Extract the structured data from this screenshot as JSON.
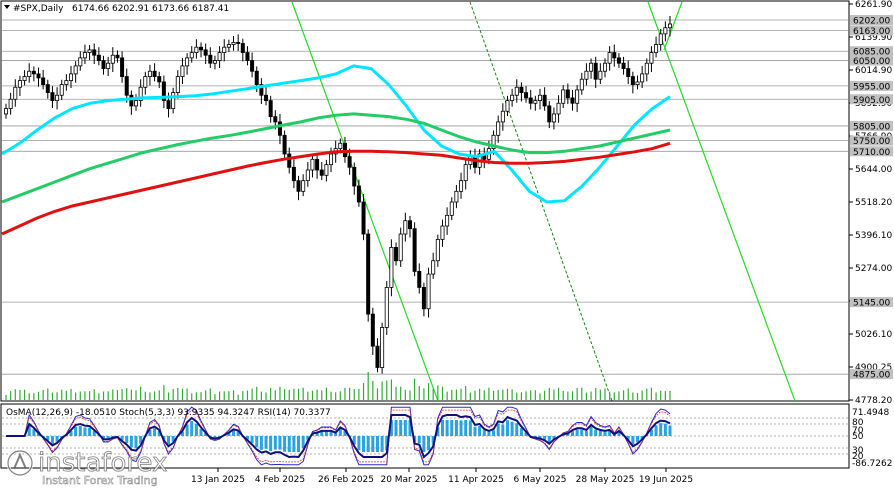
{
  "chart_data": {
    "type": "candlestick",
    "symbol_line": {
      "symbol": "#SPX,Daily",
      "open": "6174.66",
      "high": "6202.91",
      "low": "6173.66",
      "close": "6187.41"
    },
    "ylim": [
      4778.2,
      6261.9
    ],
    "price_ticks": [
      "6261.90",
      "6139.90",
      "6014.90",
      "5892.90",
      "5766.90",
      "5644.00",
      "5518.20",
      "5396.10",
      "5274.00",
      "5148.00",
      "5026.10",
      "4900.25",
      "4778.20"
    ],
    "level_tags": [
      {
        "label": "6202.00",
        "value": 6202.0,
        "color": "#c0c0c0"
      },
      {
        "label": "6163.00",
        "value": 6163.0,
        "color": "#c0c0c0"
      },
      {
        "label": "6085.00",
        "value": 6085.0,
        "color": "#c0c0c0"
      },
      {
        "label": "6050.00",
        "value": 6050.0,
        "color": "#c0c0c0"
      },
      {
        "label": "5955.00",
        "value": 5955.0,
        "color": "#c0c0c0"
      },
      {
        "label": "5905.00",
        "value": 5905.0,
        "color": "#c0c0c0"
      },
      {
        "label": "5805.00",
        "value": 5805.0,
        "color": "#c0c0c0"
      },
      {
        "label": "5750.00",
        "value": 5750.0,
        "color": "#c0c0c0"
      },
      {
        "label": "5710.00",
        "value": 5710.0,
        "color": "#c0c0c0"
      },
      {
        "label": "5145.00",
        "value": 5145.0,
        "color": "#c0c0c0"
      },
      {
        "label": "4875.00",
        "value": 4875.0,
        "color": "#c0c0c0"
      }
    ],
    "date_ticks": [
      "13 Jan 2025",
      "4 Feb 2025",
      "26 Feb 2025",
      "20 Mar 2025",
      "11 Apr 2025",
      "6 May 2025",
      "28 May 2025",
      "19 Jun 2025"
    ],
    "close_series": [
      5870,
      5905,
      5950,
      5975,
      5990,
      6010,
      6000,
      5985,
      5960,
      5930,
      5900,
      5920,
      5960,
      5975,
      6000,
      6030,
      6060,
      6080,
      6090,
      6070,
      6050,
      6020,
      6040,
      6070,
      6060,
      5990,
      5920,
      5880,
      5900,
      5950,
      5990,
      6010,
      5990,
      5970,
      5900,
      5870,
      5930,
      5990,
      6030,
      6060,
      6080,
      6100,
      6090,
      6070,
      6040,
      6050,
      6080,
      6100,
      6110,
      6118,
      6114,
      6080,
      6050,
      6010,
      5960,
      5920,
      5900,
      5840,
      5820,
      5770,
      5700,
      5650,
      5600,
      5560,
      5600,
      5640,
      5680,
      5640,
      5620,
      5660,
      5700,
      5720,
      5740,
      5690,
      5650,
      5580,
      5520,
      5400,
      5100,
      4980,
      4900,
      5050,
      5200,
      5350,
      5300,
      5400,
      5450,
      5420,
      5260,
      5200,
      5120,
      5250,
      5300,
      5380,
      5430,
      5470,
      5520,
      5560,
      5600,
      5660,
      5690,
      5650,
      5700,
      5680,
      5720,
      5770,
      5820,
      5860,
      5900,
      5920,
      5950,
      5930,
      5910,
      5890,
      5900,
      5920,
      5880,
      5820,
      5850,
      5890,
      5940,
      5910,
      5890,
      5940,
      5980,
      6010,
      6040,
      5980,
      6010,
      6040,
      6080,
      6060,
      6040,
      6020,
      5990,
      5960,
      5970,
      6000,
      6040,
      6080,
      6110,
      6150,
      6173,
      6187
    ],
    "moving_averages": [
      {
        "color": "#00e5ff",
        "values": [
          5700,
          5740,
          5790,
          5835,
          5870,
          5890,
          5900,
          5905,
          5910,
          5912,
          5915,
          5918,
          5925,
          5935,
          5945,
          5955,
          5965,
          5975,
          5985,
          6000,
          6030,
          6020,
          5960,
          5880,
          5790,
          5730,
          5700,
          5690,
          5710,
          5640,
          5560,
          5520,
          5525,
          5580,
          5650,
          5730,
          5810,
          5870,
          5915
        ]
      },
      {
        "color": "#22cc66",
        "values": [
          5520,
          5545,
          5570,
          5595,
          5620,
          5645,
          5665,
          5685,
          5705,
          5720,
          5735,
          5748,
          5760,
          5770,
          5782,
          5795,
          5808,
          5820,
          5835,
          5845,
          5850,
          5845,
          5840,
          5830,
          5815,
          5790,
          5765,
          5745,
          5730,
          5715,
          5705,
          5705,
          5710,
          5720,
          5730,
          5745,
          5760,
          5775,
          5790
        ]
      },
      {
        "color": "#e01010",
        "values": [
          5400,
          5430,
          5460,
          5485,
          5505,
          5520,
          5535,
          5550,
          5565,
          5580,
          5595,
          5610,
          5625,
          5640,
          5655,
          5668,
          5680,
          5690,
          5700,
          5708,
          5710,
          5710,
          5708,
          5705,
          5700,
          5695,
          5685,
          5675,
          5668,
          5665,
          5665,
          5668,
          5672,
          5680,
          5688,
          5698,
          5708,
          5720,
          5740
        ]
      }
    ],
    "indicator": {
      "label": "OsMA(12,26,9) -18.0510   Stoch(5,3,3) 93.9335 94.3247   RSI(14) 70.3377",
      "ticks": [
        "71.4948",
        "80",
        "70",
        "50",
        "30",
        "20",
        "-86.7262"
      ],
      "levels": [
        80,
        70,
        50,
        30,
        20
      ]
    }
  },
  "watermark": {
    "brand": "instaforex",
    "tagline": "Instant Forex Trading"
  }
}
